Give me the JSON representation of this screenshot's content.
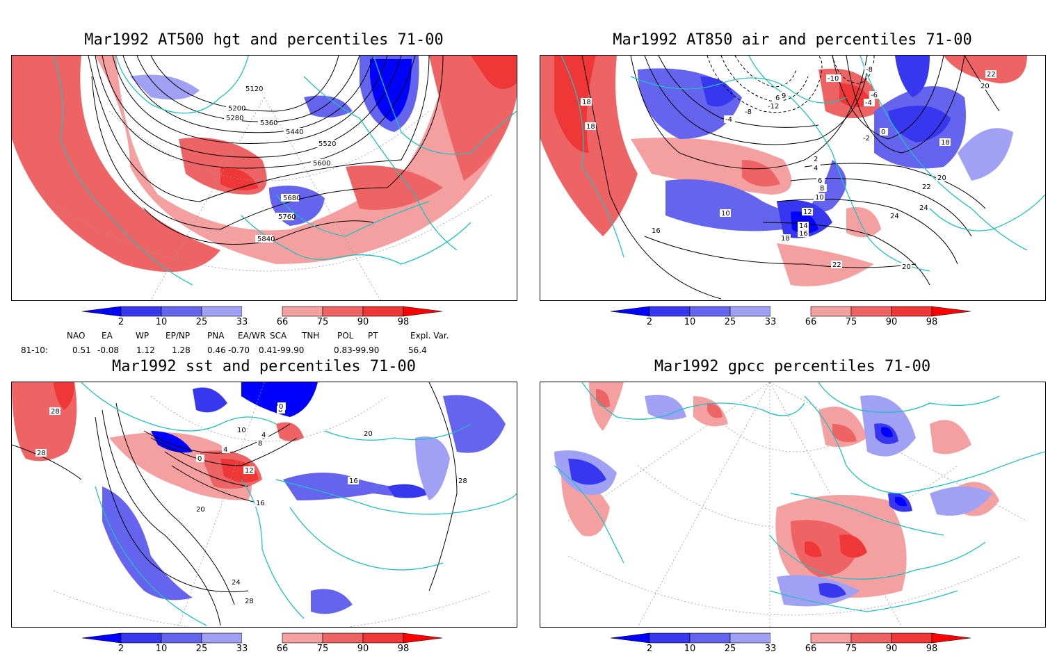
{
  "panels": [
    {
      "id": "hgt",
      "title": "Mar1992 AT500 hgt and percentiles 71-00",
      "contour_labels": [
        "5120",
        "5200",
        "5280",
        "5360",
        "5440",
        "5520",
        "5600",
        "5680",
        "5760",
        "5840"
      ]
    },
    {
      "id": "air",
      "title": "Mar1992 AT850 air and percentiles 71-00",
      "contour_labels": [
        "18",
        "18",
        "-10",
        "-8",
        "-6",
        "-4",
        "-2",
        "0",
        "2",
        "4",
        "6",
        "8",
        "10",
        "10",
        "12",
        "14",
        "16",
        "16",
        "18",
        "18",
        "20",
        "20",
        "22",
        "22",
        "22",
        "24",
        "24",
        "20",
        "-12",
        "6",
        "9",
        "-4",
        "-8"
      ]
    },
    {
      "id": "sst",
      "title": "Mar1992 sst and percentiles 71-00",
      "contour_labels": [
        "28",
        "28",
        "10",
        "0",
        "4",
        "8",
        "4",
        "0",
        "12",
        "16",
        "20",
        "24",
        "28",
        "16",
        "28",
        "20",
        "0"
      ]
    },
    {
      "id": "gpcc",
      "title": "Mar1992 gpcc percentiles 71-00",
      "contour_labels": []
    }
  ],
  "colorbar": {
    "ticks": [
      "2",
      "10",
      "25",
      "33",
      "66",
      "75",
      "90",
      "98"
    ],
    "colors": [
      "#0000ff",
      "#3737f0",
      "#6464ee",
      "#a0a0f5",
      "#ffffff",
      "#f5a0a0",
      "#ee6464",
      "#f03737",
      "#ff0000"
    ]
  },
  "indices": {
    "headers": [
      "NAO",
      "EA",
      "WP",
      "EP/NP",
      "PNA",
      "EA/WR",
      "SCA",
      "TNH",
      "POL",
      "PT",
      "Expl. Var."
    ],
    "row_label": "81-10:",
    "values": [
      "0.51",
      "-0.08",
      "1.12",
      "1.28",
      "0.46",
      "-0.70",
      "0.41-99.90",
      "0.83-99.90",
      "56.4"
    ]
  }
}
